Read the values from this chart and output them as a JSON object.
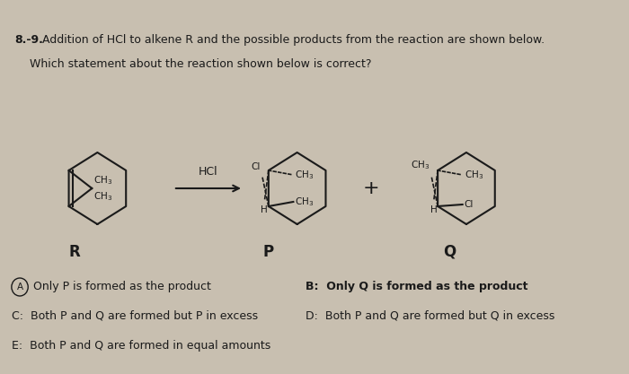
{
  "background_color": "#c8bfb0",
  "title_bold": "8.-9.",
  "title_rest": " Addition of HCl to alkene R and the possible products from the reaction are shown below.",
  "title_line2": "Which statement about the reaction shown below is correct?",
  "answer_A": "Only P is formed as the product",
  "answer_B": "B:  Only Q is formed as the product",
  "answer_C": "C:  Both P and Q are formed but P in excess",
  "answer_D": "D:  Both P and Q are formed but Q in excess",
  "answer_E": "E:  Both P and Q are formed in equal amounts",
  "label_R": "R",
  "label_P": "P",
  "label_Q": "Q",
  "label_HCl": "HCl",
  "text_color": "#1a1a1a",
  "font_size_title": 9.0,
  "font_size_body": 9.0,
  "font_size_chem": 7.5,
  "font_size_label": 10
}
